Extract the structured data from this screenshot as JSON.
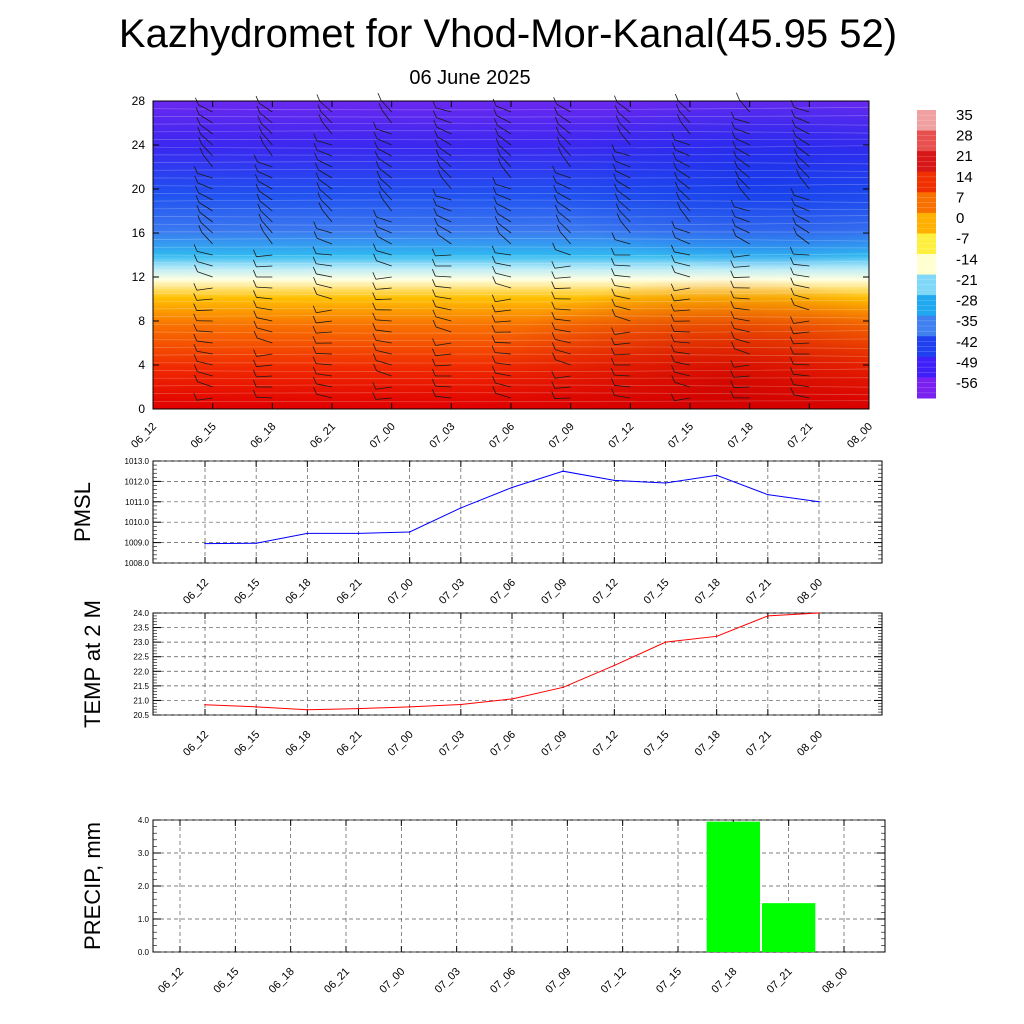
{
  "header": {
    "title": "Kazhydromet for Vhod-Mor-Kanal(45.95 52)",
    "subtitle": "06 June 2025"
  },
  "time_labels": [
    "06_12",
    "06_15",
    "06_18",
    "06_21",
    "07_00",
    "07_03",
    "07_06",
    "07_09",
    "07_12",
    "07_15",
    "07_18",
    "07_21",
    "08_00"
  ],
  "colorbar": {
    "labels": [
      "35",
      "28",
      "21",
      "14",
      "7",
      "0",
      "-7",
      "-14",
      "-21",
      "-28",
      "-35",
      "-42",
      "-49",
      "-56"
    ],
    "colors": [
      "#f0a0a0",
      "#e85050",
      "#d81818",
      "#f03000",
      "#f87000",
      "#ffb000",
      "#fff040",
      "#ffffd0",
      "#80d8f8",
      "#20a8f0",
      "#4080f0",
      "#2040f0",
      "#4020f8",
      "#7a20f0"
    ]
  },
  "chart_data": [
    {
      "type": "heatmap",
      "title": "",
      "x": [
        "06_12",
        "06_15",
        "06_18",
        "06_21",
        "07_00",
        "07_03",
        "07_06",
        "07_09",
        "07_12",
        "07_15",
        "07_18",
        "07_21",
        "08_00"
      ],
      "ylim": [
        0,
        28
      ],
      "yticks": [
        0,
        4,
        8,
        12,
        16,
        20,
        24,
        28
      ],
      "ylabel": "",
      "description_values": "temperature by height level"
    },
    {
      "type": "line",
      "ylabel": "PMSL",
      "x": [
        "06_12",
        "06_15",
        "06_18",
        "06_21",
        "07_00",
        "07_03",
        "07_06",
        "07_09",
        "07_12",
        "07_15",
        "07_18",
        "07_21",
        "08_00"
      ],
      "values": [
        1008.95,
        1008.97,
        1009.45,
        1009.45,
        1009.52,
        1010.7,
        1011.7,
        1012.5,
        1012.05,
        1011.92,
        1012.3,
        1011.35,
        1011.0
      ],
      "ylim": [
        1008.0,
        1013.0
      ],
      "yticks": [
        "1008.0",
        "1009.0",
        "1010.0",
        "1011.0",
        "1012.0",
        "1013.0"
      ],
      "color": "#0000ff"
    },
    {
      "type": "line",
      "ylabel": "TEMP at 2 M",
      "x": [
        "06_12",
        "06_15",
        "06_18",
        "06_21",
        "07_00",
        "07_03",
        "07_06",
        "07_09",
        "07_12",
        "07_15",
        "07_18",
        "07_21",
        "08_00"
      ],
      "values": [
        20.85,
        20.78,
        20.68,
        20.72,
        20.78,
        20.86,
        21.05,
        21.45,
        22.2,
        23.0,
        23.2,
        23.9,
        24.0
      ],
      "ylim": [
        20.5,
        24.0
      ],
      "yticks": [
        "20.5",
        "21.0",
        "21.5",
        "22.0",
        "22.5",
        "23.0",
        "23.5",
        "24.0"
      ],
      "color": "#ff0000"
    },
    {
      "type": "bar",
      "ylabel": "PRECIP, mm",
      "x": [
        "06_12",
        "06_15",
        "06_18",
        "06_21",
        "07_00",
        "07_03",
        "07_06",
        "07_09",
        "07_12",
        "07_15",
        "07_18",
        "07_21",
        "08_00"
      ],
      "values": [
        0,
        0,
        0,
        0,
        0,
        0,
        0,
        0,
        0,
        0,
        3.95,
        1.48,
        0
      ],
      "ylim": [
        0.0,
        4.0
      ],
      "yticks": [
        "0.0",
        "1.0",
        "2.0",
        "3.0",
        "4.0"
      ],
      "color": "#00ff00"
    }
  ]
}
